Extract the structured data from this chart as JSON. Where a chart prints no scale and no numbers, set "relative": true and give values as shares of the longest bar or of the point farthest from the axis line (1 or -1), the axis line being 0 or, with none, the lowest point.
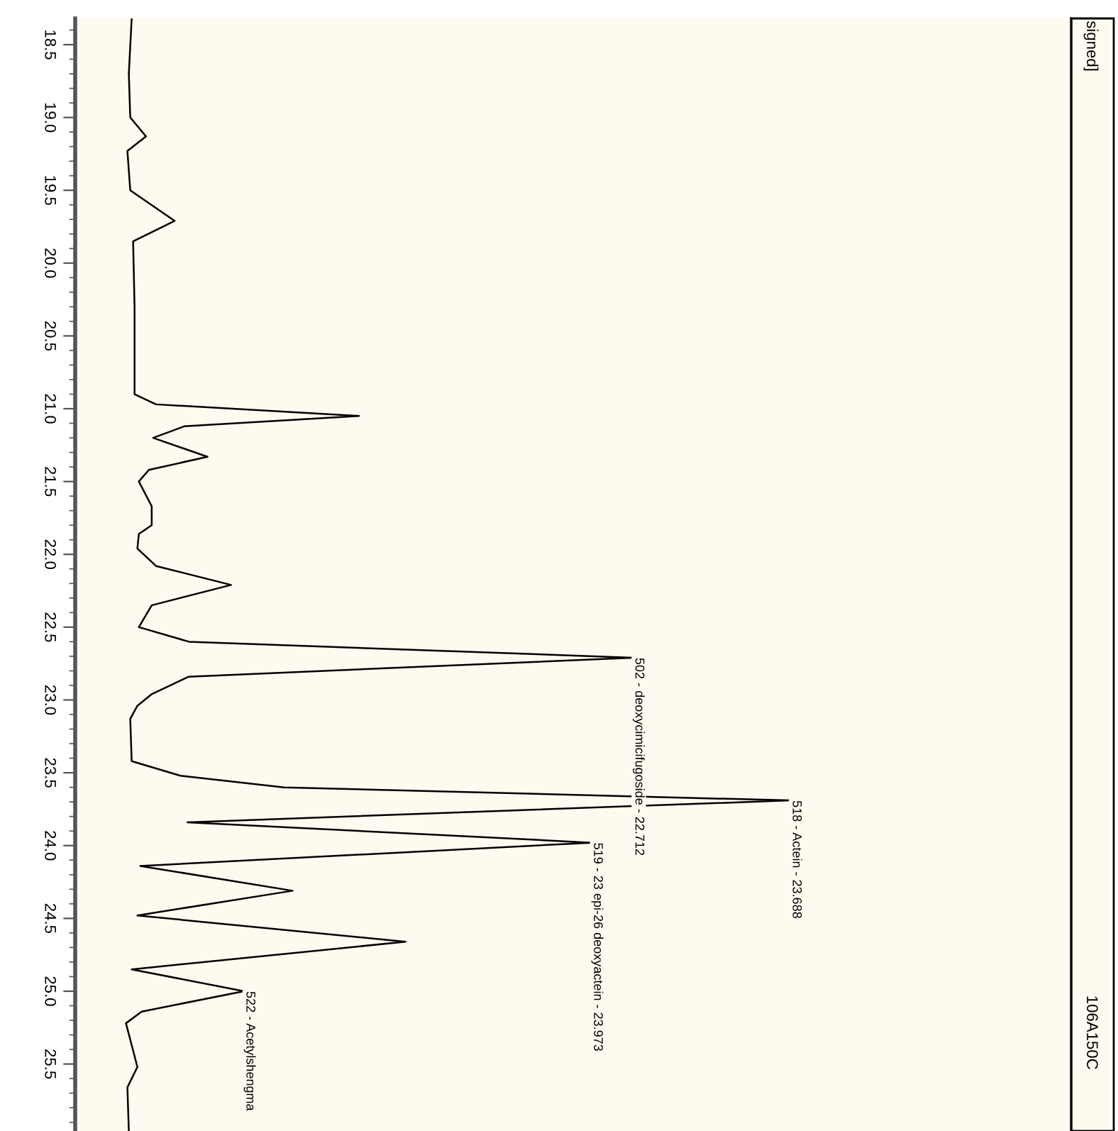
{
  "chart_data": {
    "type": "line",
    "relative": true,
    "color": "#000000",
    "x": [
      18.32,
      18.7,
      19.0,
      19.13,
      19.23,
      19.5,
      19.71,
      19.85,
      20.3,
      20.9,
      20.97,
      21.05,
      21.12,
      21.2,
      21.33,
      21.42,
      21.5,
      21.67,
      21.8,
      21.86,
      21.96,
      22.08,
      22.21,
      22.35,
      22.5,
      22.6,
      22.71,
      22.84,
      22.96,
      23.04,
      23.13,
      23.42,
      23.52,
      23.6,
      23.69,
      23.84,
      23.98,
      24.14,
      24.31,
      24.48,
      24.66,
      24.85,
      25.0,
      25.14,
      25.22,
      25.52,
      25.66,
      25.96
    ],
    "values": [
      0.079,
      0.075,
      0.077,
      0.099,
      0.073,
      0.077,
      0.139,
      0.081,
      0.083,
      0.083,
      0.113,
      0.397,
      0.153,
      0.109,
      0.185,
      0.103,
      0.089,
      0.107,
      0.107,
      0.089,
      0.087,
      0.113,
      0.218,
      0.107,
      0.089,
      0.159,
      0.78,
      0.159,
      0.107,
      0.087,
      0.077,
      0.079,
      0.147,
      0.292,
      1,
      0.157,
      0.722,
      0.091,
      0.304,
      0.087,
      0.462,
      0.079,
      0.236,
      0.093,
      0.071,
      0.087,
      0.073,
      0.075
    ],
    "orientation": "horizontal",
    "ylim": [
      25.96,
      18.32
    ],
    "yticks": [
      {
        "value": 18.5,
        "label": "18.5"
      },
      {
        "value": 19.0,
        "label": "19.0"
      },
      {
        "value": 19.5,
        "label": "19.5"
      },
      {
        "value": 20.0,
        "label": "20.0"
      },
      {
        "value": 20.5,
        "label": "20.5"
      },
      {
        "value": 21.0,
        "label": "21.0"
      },
      {
        "value": 21.5,
        "label": "21.5"
      },
      {
        "value": 22.0,
        "label": "22.0"
      },
      {
        "value": 22.5,
        "label": "22.5"
      },
      {
        "value": 23.0,
        "label": "23.0"
      },
      {
        "value": 23.5,
        "label": "23.5"
      },
      {
        "value": 24.0,
        "label": "24.0"
      },
      {
        "value": 24.5,
        "label": "24.5"
      },
      {
        "value": 25.0,
        "label": "25.0"
      },
      {
        "value": 25.5,
        "label": "25.5"
      }
    ],
    "annotations": [
      {
        "text": "502 - deoxycimicifugoside - 22.712",
        "x": 0.78,
        "y": 22.71
      },
      {
        "text": "518 - Actein - 23.688",
        "x": 1,
        "y": 23.69
      },
      {
        "text": "519 - 23 epi-26 deoxyactein - 23.973",
        "x": 0.722,
        "y": 23.98
      },
      {
        "text": "522 - Acetylshengma",
        "x": 0.236,
        "y": 25.0
      },
      "signed]",
      "106A150C"
    ]
  }
}
